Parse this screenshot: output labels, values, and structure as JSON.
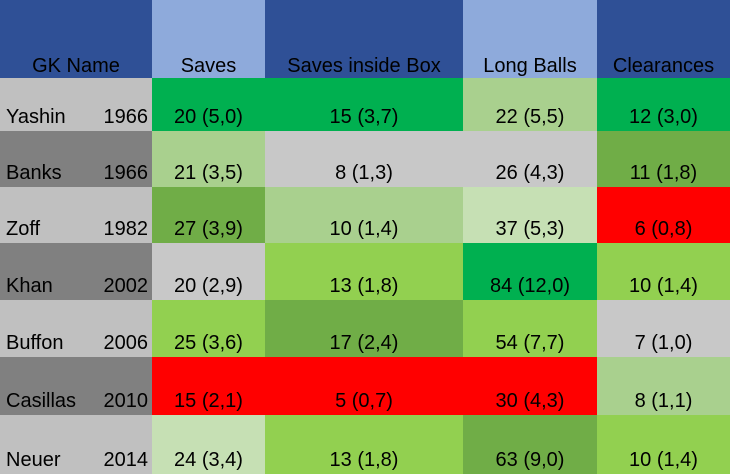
{
  "colors": {
    "header_dark": "#2F5096",
    "header_light": "#8EAADB",
    "name_dark": "#808080",
    "name_light": "#C0C0C0",
    "gray": "#C8C8C8",
    "green_dark": "#00B050",
    "green_mid": "#70AD47",
    "green": "#92D050",
    "green_light": "#A9D08E",
    "green_pale": "#C6E0B4",
    "red": "#FF0000"
  },
  "chart_data": {
    "type": "table",
    "columns": [
      "GK Name",
      "Saves",
      "Saves inside Box",
      "Long Balls",
      "Clearances"
    ],
    "rows": [
      {
        "name": "Yashin",
        "year": "1966",
        "cells": [
          "20 (5,0)",
          "15 (3,7)",
          "22 (5,5)",
          "12 (3,0)"
        ],
        "colors": [
          "green_dark",
          "green_dark",
          "green_light",
          "green_dark"
        ]
      },
      {
        "name": "Banks",
        "year": "1966",
        "cells": [
          "21 (3,5)",
          "8 (1,3)",
          "26 (4,3)",
          "11 (1,8)"
        ],
        "colors": [
          "green_light",
          "gray",
          "gray",
          "green_mid"
        ]
      },
      {
        "name": "Zoff",
        "year": "1982",
        "cells": [
          "27 (3,9)",
          "10 (1,4)",
          "37 (5,3)",
          "6 (0,8)"
        ],
        "colors": [
          "green_mid",
          "green_light",
          "green_pale",
          "red"
        ]
      },
      {
        "name": "Khan",
        "year": "2002",
        "cells": [
          "20 (2,9)",
          "13 (1,8)",
          "84 (12,0)",
          "10 (1,4)"
        ],
        "colors": [
          "gray",
          "green",
          "green_dark",
          "green"
        ]
      },
      {
        "name": "Buffon",
        "year": "2006",
        "cells": [
          "25 (3,6)",
          "17 (2,4)",
          "54 (7,7)",
          "7 (1,0)"
        ],
        "colors": [
          "green",
          "green_mid",
          "green",
          "gray"
        ]
      },
      {
        "name": "Casillas",
        "year": "2010",
        "cells": [
          "15 (2,1)",
          "5 (0,7)",
          "30 (4,3)",
          "8 (1,1)"
        ],
        "colors": [
          "red",
          "red",
          "red",
          "green_light"
        ]
      },
      {
        "name": "Neuer",
        "year": "2014",
        "cells": [
          "24 (3,4)",
          "13 (1,8)",
          "63 (9,0)",
          "10 (1,4)"
        ],
        "colors": [
          "green_pale",
          "green",
          "green_mid",
          "green"
        ]
      }
    ]
  }
}
